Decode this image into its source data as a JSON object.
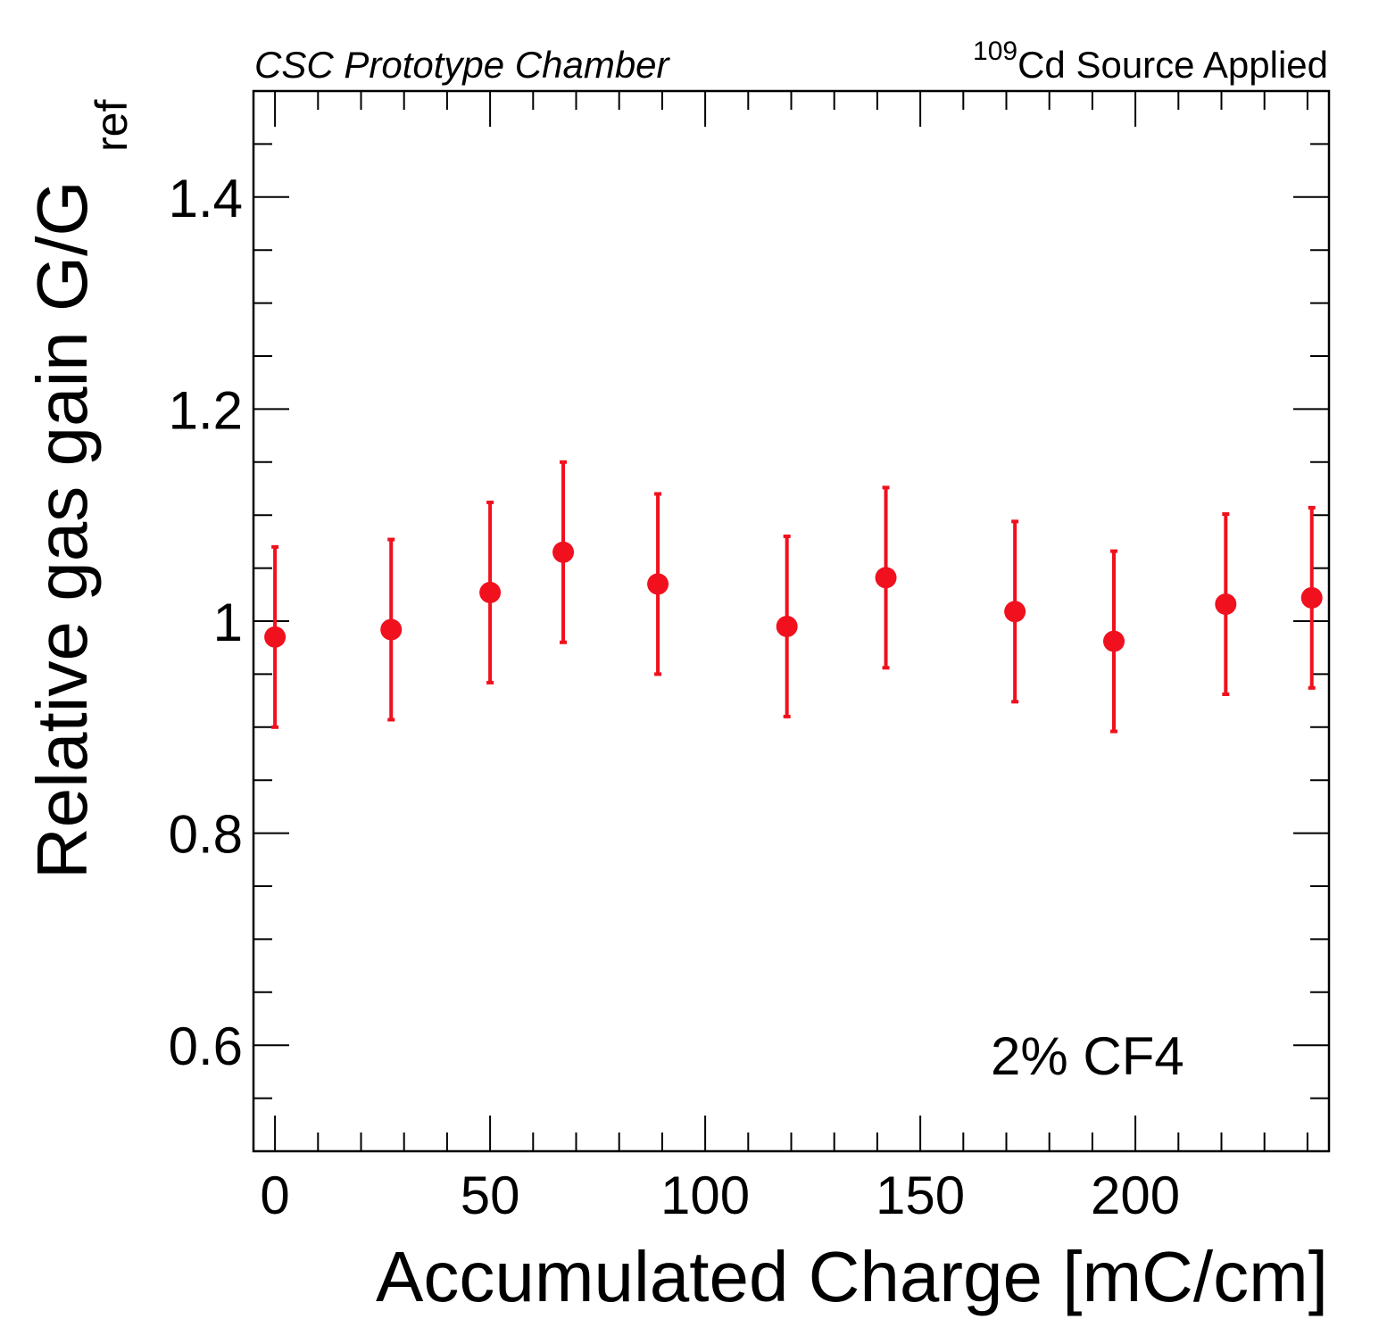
{
  "header": {
    "left_text": "CSC Prototype Chamber",
    "right_sup": "109",
    "right_text": "Cd Source Applied"
  },
  "colors": {
    "marker": "#f0101e",
    "axis": "#000000"
  },
  "chart_data": {
    "type": "scatter",
    "xlabel": "Accumulated Charge [mC/cm]",
    "ylabel_main": "Relative gas gain G/G",
    "ylabel_sub": "ref",
    "annotation": "2% CF4",
    "xlim": [
      -5,
      245
    ],
    "ylim": [
      0.5,
      1.5
    ],
    "x_tick_labels": [
      "0",
      "50",
      "100",
      "150",
      "200"
    ],
    "y_tick_labels": [
      "0.6",
      "0.8",
      "1",
      "1.2",
      "1.4"
    ],
    "series": [
      {
        "marker": "circle",
        "points": [
          {
            "x": 0,
            "y": 0.985,
            "err": 0.085
          },
          {
            "x": 27,
            "y": 0.992,
            "err": 0.085
          },
          {
            "x": 50,
            "y": 1.027,
            "err": 0.085
          },
          {
            "x": 67,
            "y": 1.065,
            "err": 0.085
          },
          {
            "x": 89,
            "y": 1.035,
            "err": 0.085
          },
          {
            "x": 119,
            "y": 0.995,
            "err": 0.085
          },
          {
            "x": 142,
            "y": 1.041,
            "err": 0.085
          },
          {
            "x": 172,
            "y": 1.009,
            "err": 0.085
          },
          {
            "x": 195,
            "y": 0.981,
            "err": 0.085
          },
          {
            "x": 221,
            "y": 1.016,
            "err": 0.085
          },
          {
            "x": 241,
            "y": 1.022,
            "err": 0.085
          }
        ]
      }
    ]
  }
}
